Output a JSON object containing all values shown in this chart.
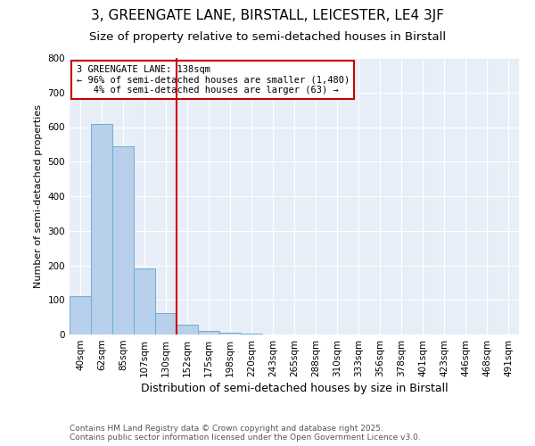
{
  "title1": "3, GREENGATE LANE, BIRSTALL, LEICESTER, LE4 3JF",
  "title2": "Size of property relative to semi-detached houses in Birstall",
  "xlabel": "Distribution of semi-detached houses by size in Birstall",
  "ylabel": "Number of semi-detached properties",
  "categories": [
    "40sqm",
    "62sqm",
    "85sqm",
    "107sqm",
    "130sqm",
    "152sqm",
    "175sqm",
    "198sqm",
    "220sqm",
    "243sqm",
    "265sqm",
    "288sqm",
    "310sqm",
    "333sqm",
    "356sqm",
    "378sqm",
    "401sqm",
    "423sqm",
    "446sqm",
    "468sqm",
    "491sqm"
  ],
  "values": [
    110,
    610,
    545,
    190,
    63,
    28,
    10,
    5,
    2,
    0,
    0,
    0,
    0,
    0,
    0,
    0,
    0,
    0,
    0,
    0,
    0
  ],
  "bar_color": "#b8d0eb",
  "bar_edge_color": "#6aaed6",
  "redline_index": 4.5,
  "redline_color": "#cc0000",
  "annotation_text": "3 GREENGATE LANE: 138sqm\n← 96% of semi-detached houses are smaller (1,480)\n   4% of semi-detached houses are larger (63) →",
  "annotation_box_color": "#cc0000",
  "ylim": [
    0,
    800
  ],
  "yticks": [
    0,
    100,
    200,
    300,
    400,
    500,
    600,
    700,
    800
  ],
  "background_color": "#e8eef8",
  "footer_text": "Contains HM Land Registry data © Crown copyright and database right 2025.\nContains public sector information licensed under the Open Government Licence v3.0.",
  "title1_fontsize": 11,
  "title2_fontsize": 9.5,
  "xlabel_fontsize": 9,
  "ylabel_fontsize": 8,
  "tick_fontsize": 7.5,
  "annotation_fontsize": 7.5,
  "footer_fontsize": 6.5
}
